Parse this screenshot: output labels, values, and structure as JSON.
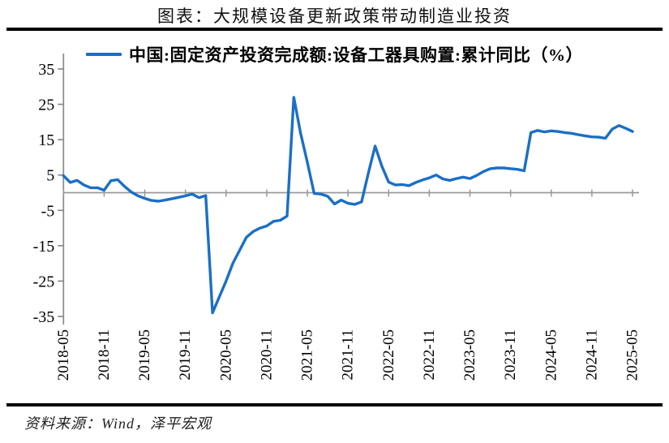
{
  "title": "图表：大规模设备更新政策带动制造业投资",
  "legend": {
    "label": "中国:固定资产投资完成额:设备工器具购置:累计同比（%）"
  },
  "source": "资料来源：Wind，泽平宏观",
  "colors": {
    "line": "#1B6FC5",
    "axis": "#8A8A8A",
    "zero_line": "#999999",
    "text": "#000000",
    "rule": "#000000"
  },
  "chart_data": {
    "type": "line",
    "title": "图表：大规模设备更新政策带动制造业投资",
    "series_name": "中国:固定资产投资完成额:设备工器具购置:累计同比（%）",
    "ylabel": "累计同比（%）",
    "xlabel": "",
    "ylim": [
      -38,
      38
    ],
    "grid": false,
    "legend_position": "top",
    "y_ticks": [
      35,
      25,
      15,
      5,
      -5,
      -15,
      -25,
      -35
    ],
    "x_tick_labels": [
      "2018-05",
      "2018-11",
      "2019-05",
      "2019-11",
      "2020-05",
      "2020-11",
      "2021-05",
      "2021-11",
      "2022-05",
      "2022-11",
      "2023-05",
      "2023-11",
      "2024-05",
      "2024-11",
      "2025-05"
    ],
    "x": [
      "2018-05",
      "2018-06",
      "2018-07",
      "2018-08",
      "2018-09",
      "2018-10",
      "2018-11",
      "2018-12",
      "2019-01",
      "2019-02",
      "2019-03",
      "2019-04",
      "2019-05",
      "2019-06",
      "2019-07",
      "2019-08",
      "2019-09",
      "2019-10",
      "2019-11",
      "2019-12",
      "2020-01",
      "2020-02",
      "2020-03",
      "2020-04",
      "2020-05",
      "2020-06",
      "2020-07",
      "2020-08",
      "2020-09",
      "2020-10",
      "2020-11",
      "2020-12",
      "2021-01",
      "2021-02",
      "2021-03",
      "2021-04",
      "2021-05",
      "2021-06",
      "2021-07",
      "2021-08",
      "2021-09",
      "2021-10",
      "2021-11",
      "2021-12",
      "2022-01",
      "2022-02",
      "2022-03",
      "2022-04",
      "2022-05",
      "2022-06",
      "2022-07",
      "2022-08",
      "2022-09",
      "2022-10",
      "2022-11",
      "2022-12",
      "2023-01",
      "2023-02",
      "2023-03",
      "2023-04",
      "2023-05",
      "2023-06",
      "2023-07",
      "2023-08",
      "2023-09",
      "2023-10",
      "2023-11",
      "2023-12",
      "2024-01",
      "2024-02",
      "2024-03",
      "2024-04",
      "2024-05",
      "2024-06",
      "2024-07",
      "2024-08",
      "2024-09",
      "2024-10",
      "2024-11",
      "2024-12",
      "2025-01",
      "2025-02",
      "2025-03",
      "2025-04",
      "2025-05"
    ],
    "values": [
      4.8,
      2.9,
      3.5,
      2.2,
      1.4,
      1.4,
      0.7,
      3.4,
      3.7,
      1.8,
      0.2,
      -0.9,
      -1.6,
      -2.2,
      -2.4,
      -2.1,
      -1.7,
      -1.3,
      -0.9,
      -0.4,
      -1.4,
      -0.8,
      -34.0,
      -29.5,
      -25.0,
      -20.0,
      -16.3,
      -12.6,
      -11.0,
      -10.0,
      -9.4,
      -8.1,
      -7.8,
      -6.6,
      27.0,
      16.8,
      8.6,
      -0.2,
      -0.4,
      -1.0,
      -3.2,
      -2.1,
      -3.0,
      -3.3,
      -2.6,
      5.5,
      13.2,
      7.5,
      3.0,
      2.2,
      2.3,
      2.0,
      2.9,
      3.6,
      4.2,
      5.0,
      3.9,
      3.5,
      4.0,
      4.4,
      4.0,
      4.9,
      6.0,
      6.8,
      7.0,
      7.0,
      6.8,
      6.6,
      6.2,
      17.0,
      17.6,
      17.2,
      17.5,
      17.3,
      17.0,
      16.8,
      16.4,
      16.1,
      15.8,
      15.7,
      15.4,
      18.0,
      19.0,
      18.2,
      17.3
    ]
  }
}
